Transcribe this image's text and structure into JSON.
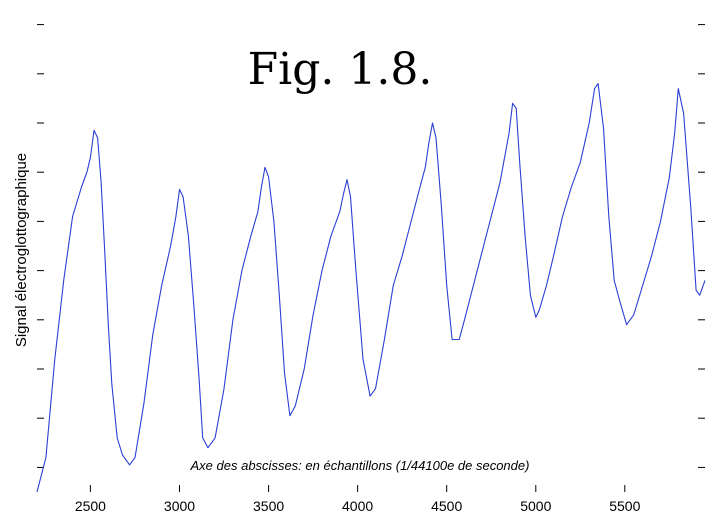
{
  "chart_data": {
    "type": "line",
    "title": "Fig. 1.8.",
    "xlabel": "",
    "ylabel": "Signal électroglottographique",
    "annotation": "Axe des abscisses: en échantillons (1/44100e de seconde)",
    "xlim": [
      2200,
      5950
    ],
    "ylim": [
      0,
      1
    ],
    "xticks": [
      "2500",
      "3000",
      "3500",
      "4000",
      "4500",
      "5000",
      "5500"
    ],
    "yticks": [
      0.05,
      0.15,
      0.25,
      0.35,
      0.45,
      0.55,
      0.65,
      0.75,
      0.85,
      0.95
    ],
    "grid": false,
    "legend": "none",
    "color": "#2b3fd6",
    "series": [
      {
        "x": [
          2200,
          2250,
          2300,
          2350,
          2400,
          2450,
          2480,
          2500,
          2520,
          2540,
          2560,
          2580,
          2600,
          2620,
          2650,
          2680,
          2720,
          2750,
          2800,
          2850,
          2900,
          2950,
          2980,
          3000,
          3020,
          3050,
          3080,
          3110,
          3130,
          3160,
          3200,
          3250,
          3300,
          3350,
          3400,
          3440,
          3460,
          3480,
          3500,
          3530,
          3560,
          3590,
          3620,
          3650,
          3700,
          3750,
          3800,
          3850,
          3900,
          3920,
          3940,
          3960,
          3990,
          4030,
          4070,
          4100,
          4150,
          4200,
          4250,
          4300,
          4350,
          4380,
          4400,
          4420,
          4440,
          4470,
          4500,
          4530,
          4570,
          4600,
          4650,
          4700,
          4750,
          4800,
          4850,
          4870,
          4890,
          4910,
          4940,
          4970,
          5000,
          5020,
          5060,
          5100,
          5150,
          5200,
          5250,
          5300,
          5330,
          5350,
          5380,
          5410,
          5440,
          5470,
          5510,
          5550,
          5600,
          5650,
          5700,
          5750,
          5780,
          5800,
          5830,
          5870,
          5900,
          5920,
          5950
        ],
        "y": [
          0.0,
          0.07,
          0.27,
          0.43,
          0.56,
          0.62,
          0.65,
          0.68,
          0.735,
          0.72,
          0.63,
          0.49,
          0.34,
          0.22,
          0.11,
          0.075,
          0.055,
          0.07,
          0.18,
          0.32,
          0.42,
          0.5,
          0.56,
          0.615,
          0.6,
          0.52,
          0.38,
          0.23,
          0.11,
          0.09,
          0.11,
          0.21,
          0.35,
          0.45,
          0.52,
          0.57,
          0.62,
          0.66,
          0.64,
          0.55,
          0.4,
          0.24,
          0.155,
          0.175,
          0.25,
          0.36,
          0.45,
          0.52,
          0.57,
          0.605,
          0.635,
          0.6,
          0.45,
          0.27,
          0.195,
          0.21,
          0.31,
          0.42,
          0.48,
          0.55,
          0.62,
          0.66,
          0.71,
          0.75,
          0.72,
          0.58,
          0.42,
          0.31,
          0.31,
          0.35,
          0.42,
          0.49,
          0.56,
          0.63,
          0.73,
          0.79,
          0.78,
          0.67,
          0.52,
          0.4,
          0.355,
          0.37,
          0.42,
          0.48,
          0.56,
          0.62,
          0.67,
          0.75,
          0.82,
          0.83,
          0.74,
          0.56,
          0.43,
          0.39,
          0.34,
          0.36,
          0.42,
          0.48,
          0.55,
          0.64,
          0.73,
          0.82,
          0.77,
          0.58,
          0.41,
          0.4,
          0.43
        ]
      }
    ]
  }
}
